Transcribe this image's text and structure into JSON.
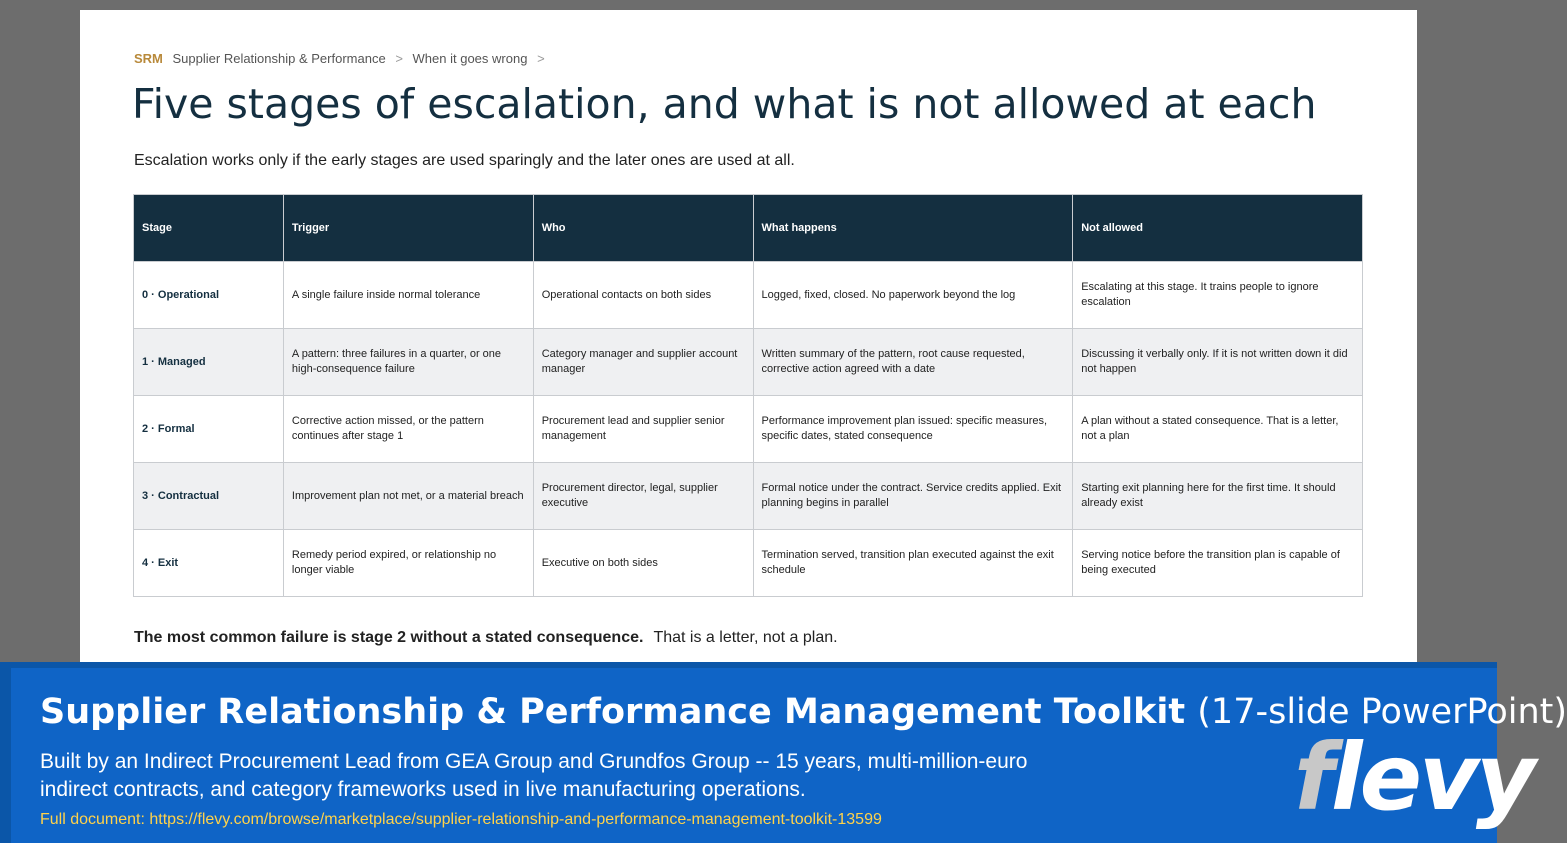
{
  "breadcrumb": {
    "tag": "SRM",
    "items": [
      "Supplier Relationship & Performance",
      "When it goes wrong"
    ],
    "separator": ">"
  },
  "title": "Five stages of escalation, and what is not allowed at each",
  "subtitle": "Escalation works only if the early stages are used sparingly and the later ones are used at all.",
  "table": {
    "headers": [
      "Stage",
      "Trigger",
      "Who",
      "What happens",
      "Not allowed"
    ],
    "rows": [
      [
        "0 · Operational",
        "A single failure inside normal tolerance",
        "Operational contacts on both sides",
        "Logged, fixed, closed. No paperwork beyond the log",
        "Escalating at this stage. It trains people to ignore escalation"
      ],
      [
        "1 · Managed",
        "A pattern: three failures in a quarter, or one high-consequence failure",
        "Category manager and supplier account manager",
        "Written summary of the pattern, root cause requested, corrective action agreed with a date",
        "Discussing it verbally only. If it is not written down it did not happen"
      ],
      [
        "2 · Formal",
        "Corrective action missed, or the pattern continues after stage 1",
        "Procurement lead and supplier senior management",
        "Performance improvement plan issued: specific measures, specific dates, stated consequence",
        "A plan without a stated consequence. That is a letter, not a plan"
      ],
      [
        "3 · Contractual",
        "Improvement plan not met, or a material breach",
        "Procurement director, legal, supplier executive",
        "Formal notice under the contract. Service credits applied. Exit planning begins in parallel",
        "Starting exit planning here for the first time. It should already exist"
      ],
      [
        "4 · Exit",
        "Remedy period expired, or relationship no longer viable",
        "Executive on both sides",
        "Termination served, transition plan executed against the exit schedule",
        "Serving notice before the transition plan is capable of being executed"
      ]
    ]
  },
  "footnote": {
    "bold": "The most common failure is stage 2 without a stated consequence.",
    "normal": "That is a letter, not a plan."
  },
  "banner": {
    "title": "Supplier Relationship & Performance Management Toolkit",
    "title_suffix": "(17-slide PowerPoint)",
    "description": "Built by an Indirect Procurement Lead from GEA Group and Grundfos Group -- 15 years, multi-million-euro indirect contracts, and category frameworks used in live manufacturing operations.",
    "link": "Full document: https://flevy.com/browse/marketplace/supplier-relationship-and-performance-management-toolkit-13599",
    "logo": "flevy"
  },
  "colors": {
    "header_bg": "#142f40",
    "accent": "#b8893a",
    "banner_bg": "#0f64c6",
    "link": "#ffd24a"
  }
}
